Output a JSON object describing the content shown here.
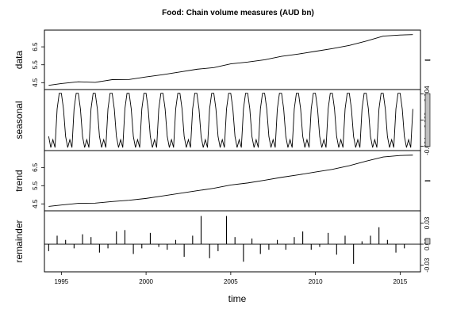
{
  "chart_data": {
    "type": "line",
    "title": "Food: Chain volume measures (AUD bn)",
    "xlabel": "time",
    "xlim": [
      1994.0,
      2016.2
    ],
    "x_ticks": [
      "1995",
      "2000",
      "2005",
      "2010",
      "2015"
    ],
    "x_tick_values": [
      1995,
      2000,
      2005,
      2010,
      2015
    ],
    "start_year": 1994.25,
    "frequency": 4,
    "panels": [
      {
        "key": "data",
        "ylabel": "data",
        "ylim": [
          4.25,
          7.3
        ],
        "y_ticks": [
          "4.5",
          "5.5",
          "6.5"
        ],
        "y_tick_values": [
          4.5,
          5.5,
          6.5
        ],
        "y_tick_side": "left",
        "style": "line",
        "x": [
          1994.25,
          1995.0,
          1996.0,
          1997.0,
          1998.0,
          1999.0,
          2000.0,
          2001.0,
          2002.0,
          2003.0,
          2004.0,
          2005.0,
          2006.0,
          2007.0,
          2008.0,
          2009.0,
          2010.0,
          2011.0,
          2012.0,
          2013.0,
          2014.0,
          2015.0,
          2015.75
        ],
        "values": [
          4.35,
          4.45,
          4.55,
          4.52,
          4.67,
          4.68,
          4.82,
          4.95,
          5.1,
          5.25,
          5.34,
          5.55,
          5.65,
          5.78,
          5.97,
          6.1,
          6.25,
          6.4,
          6.58,
          6.82,
          7.1,
          7.16,
          7.18
        ]
      },
      {
        "key": "seasonal",
        "ylabel": "seasonal",
        "ylim": [
          -0.0043,
          0.0043
        ],
        "y_ticks": [
          "-0.004",
          "0.000",
          "0.004"
        ],
        "y_tick_values": [
          -0.004,
          0.0,
          0.004
        ],
        "y_tick_side": "right",
        "style": "line",
        "seasonal_pattern": [
          -0.0025,
          -0.0042,
          -0.003,
          -0.0042,
          0.0017,
          0.0041,
          0.0041,
          0.0017
        ]
      },
      {
        "key": "trend",
        "ylabel": "trend",
        "ylim": [
          4.25,
          7.3
        ],
        "y_ticks": [
          "4.5",
          "5.5",
          "6.5"
        ],
        "y_tick_values": [
          4.5,
          5.5,
          6.5
        ],
        "y_tick_side": "left",
        "style": "line",
        "x": [
          1994.25,
          1995.0,
          1996.0,
          1997.0,
          1998.0,
          1999.0,
          2000.0,
          2001.0,
          2002.0,
          2003.0,
          2004.0,
          2005.0,
          2006.0,
          2007.0,
          2008.0,
          2009.0,
          2010.0,
          2011.0,
          2012.0,
          2013.0,
          2014.0,
          2015.0,
          2015.75
        ],
        "values": [
          4.36,
          4.44,
          4.53,
          4.54,
          4.63,
          4.7,
          4.8,
          4.94,
          5.08,
          5.22,
          5.36,
          5.54,
          5.65,
          5.8,
          5.96,
          6.1,
          6.25,
          6.4,
          6.6,
          6.85,
          7.08,
          7.16,
          7.18
        ]
      },
      {
        "key": "remainder",
        "ylabel": "remainder",
        "ylim": [
          -0.036,
          0.044
        ],
        "y_ticks": [
          "-0.03",
          "0.00",
          "0.03"
        ],
        "y_tick_values": [
          -0.03,
          0.0,
          0.03
        ],
        "y_tick_side": "right",
        "style": "bars",
        "x": [
          1994.25,
          1994.75,
          1995.25,
          1995.75,
          1996.25,
          1996.75,
          1997.25,
          1997.75,
          1998.25,
          1998.75,
          1999.25,
          1999.75,
          2000.25,
          2000.75,
          2001.25,
          2001.75,
          2002.25,
          2002.75,
          2003.25,
          2003.75,
          2004.25,
          2004.75,
          2005.25,
          2005.75,
          2006.25,
          2006.75,
          2007.25,
          2007.75,
          2008.25,
          2008.75,
          2009.25,
          2009.75,
          2010.25,
          2010.75,
          2011.25,
          2011.75,
          2012.25,
          2012.75,
          2013.25,
          2013.75,
          2014.25,
          2014.75,
          2015.25,
          2015.75
        ],
        "values": [
          -0.01,
          0.012,
          0.006,
          -0.006,
          0.014,
          0.01,
          -0.012,
          -0.006,
          0.018,
          0.02,
          -0.014,
          -0.006,
          0.016,
          -0.004,
          -0.008,
          0.006,
          -0.018,
          0.012,
          0.04,
          -0.02,
          -0.01,
          0.04,
          0.01,
          -0.025,
          0.008,
          -0.014,
          -0.008,
          0.006,
          -0.008,
          0.01,
          0.018,
          -0.008,
          -0.004,
          0.016,
          -0.015,
          0.012,
          -0.028,
          0.004,
          0.012,
          0.024,
          0.006,
          -0.012,
          -0.006,
          0.0
        ]
      }
    ],
    "grid": false,
    "legend": "none"
  }
}
